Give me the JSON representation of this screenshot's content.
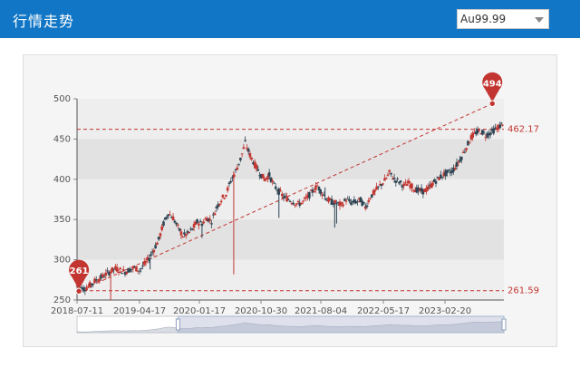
{
  "header": {
    "title": "行情走势",
    "selector_value": "Au99.99"
  },
  "colors": {
    "header_bg": "#1176c5",
    "up": "#c23531",
    "down": "#2f4554",
    "refline": "#c23531"
  },
  "chart_data": {
    "type": "candlestick",
    "xlabels": [
      "2018-07-11",
      "2019-04-17",
      "2020-01-17",
      "2020-10-30",
      "2021-08-04",
      "2022-05-17",
      "2023-02-20"
    ],
    "ylim": [
      250,
      500
    ],
    "yticks": [
      250,
      300,
      350,
      400,
      450,
      500
    ],
    "grid": "banded",
    "max_marker": {
      "label": "494",
      "value": 494
    },
    "min_marker": {
      "label": "261",
      "value": 261
    },
    "ref_lines": [
      {
        "label": "462.17",
        "value": 462.17
      },
      {
        "label": "261.59",
        "value": 261.59
      }
    ],
    "trend_line": {
      "from": 261,
      "to": 494
    },
    "series_approx": [
      [
        0,
        268
      ],
      [
        5,
        264
      ],
      [
        10,
        265
      ],
      [
        15,
        270
      ],
      [
        20,
        275
      ],
      [
        25,
        278
      ],
      [
        30,
        282
      ],
      [
        35,
        286
      ],
      [
        40,
        289
      ],
      [
        45,
        287
      ],
      [
        50,
        285
      ],
      [
        55,
        288
      ],
      [
        60,
        290
      ],
      [
        65,
        287
      ],
      [
        70,
        294
      ],
      [
        75,
        302
      ],
      [
        80,
        313
      ],
      [
        85,
        325
      ],
      [
        90,
        345
      ],
      [
        95,
        358
      ],
      [
        100,
        352
      ],
      [
        105,
        340
      ],
      [
        110,
        330
      ],
      [
        115,
        332
      ],
      [
        120,
        338
      ],
      [
        125,
        347
      ],
      [
        130,
        345
      ],
      [
        135,
        352
      ],
      [
        140,
        348
      ],
      [
        145,
        365
      ],
      [
        150,
        375
      ],
      [
        155,
        382
      ],
      [
        160,
        398
      ],
      [
        165,
        410
      ],
      [
        170,
        425
      ],
      [
        175,
        445
      ],
      [
        180,
        430
      ],
      [
        185,
        418
      ],
      [
        190,
        408
      ],
      [
        195,
        400
      ],
      [
        200,
        405
      ],
      [
        205,
        392
      ],
      [
        210,
        385
      ],
      [
        215,
        378
      ],
      [
        220,
        375
      ],
      [
        225,
        372
      ],
      [
        230,
        369
      ],
      [
        235,
        372
      ],
      [
        240,
        378
      ],
      [
        245,
        385
      ],
      [
        250,
        392
      ],
      [
        255,
        383
      ],
      [
        260,
        375
      ],
      [
        265,
        372
      ],
      [
        270,
        370
      ],
      [
        275,
        368
      ],
      [
        280,
        375
      ],
      [
        285,
        371
      ],
      [
        290,
        372
      ],
      [
        295,
        374
      ],
      [
        300,
        365
      ],
      [
        305,
        378
      ],
      [
        310,
        385
      ],
      [
        315,
        392
      ],
      [
        320,
        398
      ],
      [
        325,
        408
      ],
      [
        330,
        400
      ],
      [
        335,
        397
      ],
      [
        340,
        392
      ],
      [
        345,
        395
      ],
      [
        350,
        389
      ],
      [
        355,
        386
      ],
      [
        360,
        385
      ],
      [
        365,
        388
      ],
      [
        370,
        395
      ],
      [
        375,
        400
      ],
      [
        380,
        405
      ],
      [
        385,
        408
      ],
      [
        390,
        410
      ],
      [
        395,
        418
      ],
      [
        400,
        428
      ],
      [
        405,
        440
      ],
      [
        410,
        452
      ],
      [
        415,
        458
      ],
      [
        420,
        460
      ],
      [
        425,
        455
      ],
      [
        430,
        458
      ],
      [
        435,
        462
      ],
      [
        440,
        466
      ],
      [
        444,
        472
      ]
    ],
    "wicks_approx": [
      [
        35,
        243
      ],
      [
        76,
        288
      ],
      [
        130,
        327
      ],
      [
        163,
        282
      ],
      [
        210,
        352
      ],
      [
        255,
        384
      ],
      [
        258,
        390
      ],
      [
        264,
        368
      ],
      [
        268,
        340
      ],
      [
        270,
        345
      ],
      [
        300,
        370
      ]
    ]
  }
}
